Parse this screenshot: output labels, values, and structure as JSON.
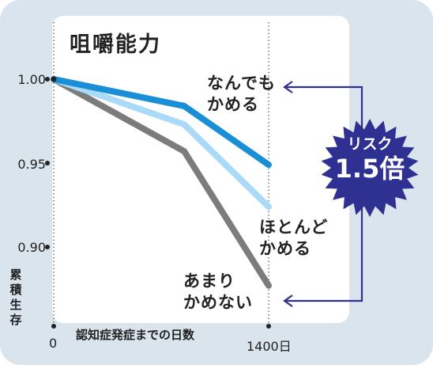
{
  "chart_data": {
    "type": "line",
    "title": "咀嚼能力",
    "xlabel": "認知症発症までの日数",
    "ylabel": "累積生存",
    "x_ticks": [
      "0",
      "1400日"
    ],
    "y_ticks": [
      "1.00",
      "0.95",
      "0.90"
    ],
    "xlim": [
      0,
      1400
    ],
    "ylim": [
      0.87,
      1.0
    ],
    "grid": false,
    "x": [
      0,
      850,
      1400
    ],
    "series": [
      {
        "name": "なんでもかめる",
        "label_lines": [
          "なんでも",
          "かめる"
        ],
        "color": "#1a8fd6",
        "values": [
          1.0,
          0.984,
          0.949
        ]
      },
      {
        "name": "ほとんどかめる",
        "label_lines": [
          "ほとんど",
          "かめる"
        ],
        "color": "#a9daf7",
        "values": [
          1.0,
          0.973,
          0.924
        ]
      },
      {
        "name": "あまりかめない",
        "label_lines": [
          "あまり",
          "かめない"
        ],
        "color": "#7c7c7c",
        "values": [
          1.0,
          0.957,
          0.877
        ]
      }
    ],
    "annotation": {
      "line1": "リスク",
      "line2": "1.5倍",
      "color": "#2e3192"
    }
  }
}
